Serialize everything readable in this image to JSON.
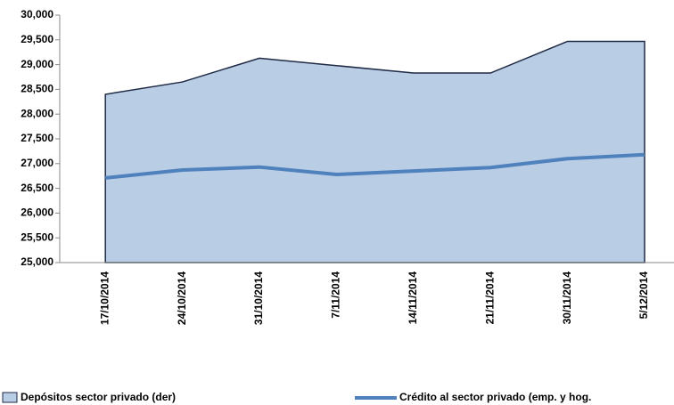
{
  "chart_data": {
    "type": "area_line",
    "categories": [
      "17/10/2014",
      "24/10/2014",
      "31/10/2014",
      "7/11/2014",
      "14/11/2014",
      "21/11/2014",
      "30/11/2014",
      "5/12/2014"
    ],
    "series": [
      {
        "name": "Depósitos sector privado (der)",
        "color": "#b9cde5",
        "values": [
          28400,
          28650,
          29130,
          28980,
          28830,
          28830,
          29470,
          29470
        ]
      },
      {
        "name": "Crédito al sector privado (emp. y hog.",
        "color": "#4f81bd",
        "values": [
          26710,
          26870,
          26930,
          26780,
          26850,
          26920,
          27100,
          27180
        ]
      }
    ],
    "ylim": [
      25000,
      30000
    ],
    "yticks": [
      {
        "value": 25000,
        "label": "25,000"
      },
      {
        "value": 25500,
        "label": "25,500"
      },
      {
        "value": 26000,
        "label": "26,000"
      },
      {
        "value": 26500,
        "label": "26,500"
      },
      {
        "value": 27000,
        "label": "27,000"
      },
      {
        "value": 27500,
        "label": "27,500"
      },
      {
        "value": 28000,
        "label": "28,000"
      },
      {
        "value": 28500,
        "label": "28,500"
      },
      {
        "value": 29000,
        "label": "29,000"
      },
      {
        "value": 29500,
        "label": "29,500"
      },
      {
        "value": 30000,
        "label": "30,000"
      }
    ]
  }
}
